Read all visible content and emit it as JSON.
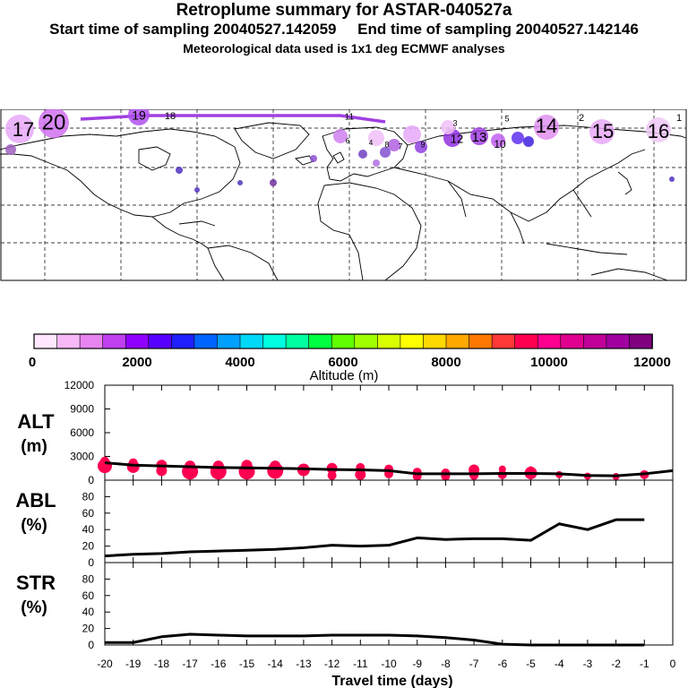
{
  "header": {
    "title": "Retroplume summary for ASTAR-040527a",
    "subtitle": "Start time of sampling 20040527.142059     End time of sampling 20040527.142146",
    "subtitle2": "Meteorological data used is 1x1 deg ECMWF analyses"
  },
  "map": {
    "labels": [
      "20",
      "19",
      "18",
      "17",
      "16",
      "15",
      "14",
      "13",
      "12",
      "11",
      "10",
      "9",
      "8",
      "7",
      "6",
      "5",
      "4",
      "3",
      "2",
      "1"
    ]
  },
  "colorbar": {
    "colors": [
      "#ffe8ff",
      "#f8b8f8",
      "#e884f0",
      "#c040f0",
      "#9000ff",
      "#5800ff",
      "#2020ff",
      "#0064ff",
      "#00a0ff",
      "#00d8f8",
      "#00ffe0",
      "#00ffa0",
      "#00ff40",
      "#60ff00",
      "#a0ff00",
      "#d8ff00",
      "#ffff00",
      "#ffd800",
      "#ffa800",
      "#ff7800",
      "#ff3838",
      "#ff0050",
      "#ff0090",
      "#e00090",
      "#c00098",
      "#a000a0",
      "#800080"
    ],
    "tick_labels": [
      "0",
      "2000",
      "4000",
      "6000",
      "8000",
      "10000",
      "12000"
    ],
    "title": "Altitude (m)"
  },
  "chart_data": [
    {
      "type": "line",
      "name": "ALT",
      "ylabel": [
        "ALT",
        "(m)"
      ],
      "ylim": [
        0,
        12000
      ],
      "yticks": [
        "12000",
        "9000",
        "6000",
        "3000",
        "0"
      ],
      "x": [
        -20,
        -19,
        -18,
        -17,
        -16,
        -15,
        -14,
        -13,
        -12,
        -11,
        -10,
        -9,
        -8,
        -7,
        -6,
        -5,
        -4,
        -3,
        -2,
        -1,
        0
      ],
      "values": [
        2200,
        1900,
        1800,
        1700,
        1600,
        1550,
        1500,
        1450,
        1350,
        1300,
        1200,
        800,
        800,
        800,
        850,
        850,
        800,
        600,
        550,
        800,
        1200
      ],
      "points": [
        {
          "x": -20,
          "y": 1800,
          "s": 8
        },
        {
          "x": -20,
          "y": 2400,
          "s": 5
        },
        {
          "x": -19,
          "y": 1700,
          "s": 7
        },
        {
          "x": -19,
          "y": 2200,
          "s": 5
        },
        {
          "x": -18,
          "y": 1200,
          "s": 6
        },
        {
          "x": -18,
          "y": 1900,
          "s": 6
        },
        {
          "x": -17,
          "y": 1100,
          "s": 9
        },
        {
          "x": -17,
          "y": 1800,
          "s": 6
        },
        {
          "x": -16,
          "y": 1100,
          "s": 9
        },
        {
          "x": -16,
          "y": 1800,
          "s": 6
        },
        {
          "x": -15,
          "y": 1100,
          "s": 9
        },
        {
          "x": -15,
          "y": 1900,
          "s": 6
        },
        {
          "x": -14,
          "y": 1200,
          "s": 9
        },
        {
          "x": -14,
          "y": 1800,
          "s": 6
        },
        {
          "x": -13,
          "y": 1300,
          "s": 7
        },
        {
          "x": -12,
          "y": 1500,
          "s": 6
        },
        {
          "x": -12,
          "y": 600,
          "s": 5
        },
        {
          "x": -11,
          "y": 1600,
          "s": 5
        },
        {
          "x": -11,
          "y": 700,
          "s": 6
        },
        {
          "x": -10,
          "y": 1400,
          "s": 5
        },
        {
          "x": -10,
          "y": 800,
          "s": 5
        },
        {
          "x": -9,
          "y": 1000,
          "s": 5
        },
        {
          "x": -9,
          "y": 500,
          "s": 5
        },
        {
          "x": -8,
          "y": 900,
          "s": 5
        },
        {
          "x": -8,
          "y": 500,
          "s": 5
        },
        {
          "x": -7,
          "y": 1300,
          "s": 6
        },
        {
          "x": -7,
          "y": 600,
          "s": 5
        },
        {
          "x": -6,
          "y": 1400,
          "s": 4
        },
        {
          "x": -6,
          "y": 700,
          "s": 5
        },
        {
          "x": -5,
          "y": 900,
          "s": 7
        },
        {
          "x": -5,
          "y": 1300,
          "s": 4
        },
        {
          "x": -4,
          "y": 700,
          "s": 4
        },
        {
          "x": -3,
          "y": 500,
          "s": 4
        },
        {
          "x": -2,
          "y": 450,
          "s": 4
        },
        {
          "x": -1,
          "y": 700,
          "s": 5
        }
      ]
    },
    {
      "type": "line",
      "name": "ABL",
      "ylabel": [
        "ABL",
        "(%)"
      ],
      "ylim": [
        0,
        100
      ],
      "yticks": [
        "80",
        "60",
        "40",
        "20",
        "0"
      ],
      "x": [
        -20,
        -19,
        -18,
        -17,
        -16,
        -15,
        -14,
        -13,
        -12,
        -11,
        -10,
        -9,
        -8,
        -7,
        -6,
        -5,
        -4,
        -3,
        -2,
        -1
      ],
      "values": [
        8,
        10,
        11,
        13,
        14,
        15,
        16,
        18,
        21,
        20,
        21,
        30,
        28,
        29,
        29,
        27,
        47,
        40,
        52,
        52
      ]
    },
    {
      "type": "line",
      "name": "STR",
      "ylabel": [
        "STR",
        "(%)"
      ],
      "ylim": [
        0,
        100
      ],
      "yticks": [
        "80",
        "60",
        "40",
        "20",
        "0"
      ],
      "xlabel": "Travel time (days)",
      "xticks": [
        "-20",
        "-19",
        "-18",
        "-17",
        "-16",
        "-15",
        "-14",
        "-13",
        "-12",
        "-11",
        "-10",
        "-9",
        "-8",
        "-7",
        "-6",
        "-5",
        "-4",
        "-3",
        "-2",
        "-1",
        "0"
      ],
      "x": [
        -20,
        -19,
        -18,
        -17,
        -16,
        -15,
        -14,
        -13,
        -12,
        -11,
        -10,
        -9,
        -8,
        -7,
        -6,
        -5,
        -4,
        -3,
        -2,
        -1
      ],
      "values": [
        3,
        3,
        10,
        13,
        12,
        11,
        11,
        11,
        12,
        12,
        12,
        11,
        9,
        6,
        1,
        0,
        0,
        0,
        0,
        0
      ]
    }
  ]
}
